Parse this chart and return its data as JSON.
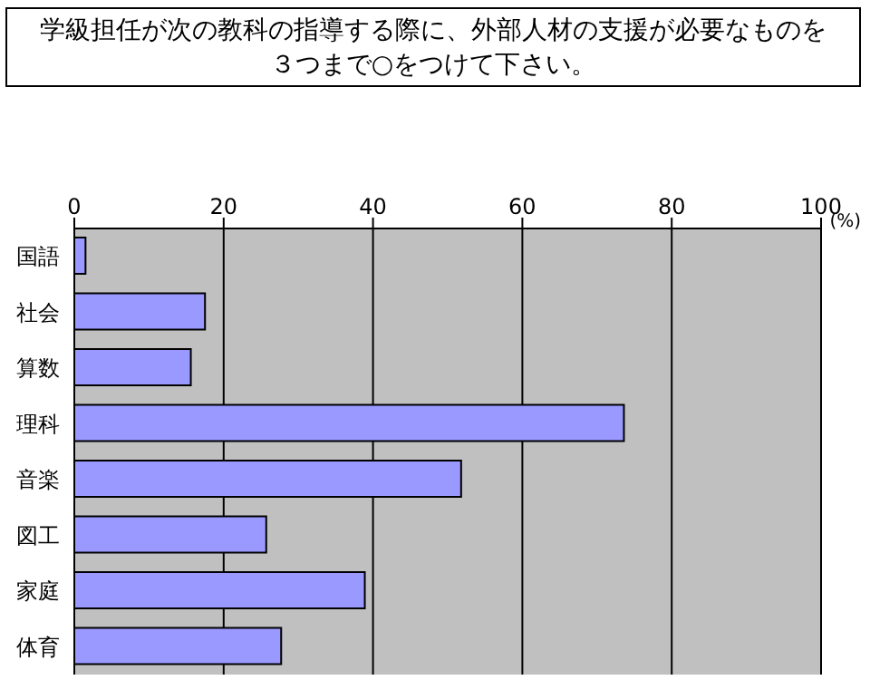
{
  "chart_data": {
    "type": "bar",
    "orientation": "horizontal",
    "title": "学級担任が次の教科の指導する際に、外部人材の支援が必要なものを３つまで○をつけて下さい。",
    "xlabel": "(%)",
    "categories": [
      "国語",
      "社会",
      "算数",
      "理科",
      "音楽",
      "図工",
      "家庭",
      "体育"
    ],
    "values": [
      1.5,
      17.5,
      15.6,
      73.6,
      51.8,
      25.7,
      38.9,
      27.7
    ],
    "color": "#9999ff",
    "xlim": [
      0,
      100
    ],
    "xticks": [
      0,
      20,
      40,
      60,
      80,
      100
    ],
    "grid": "x"
  }
}
